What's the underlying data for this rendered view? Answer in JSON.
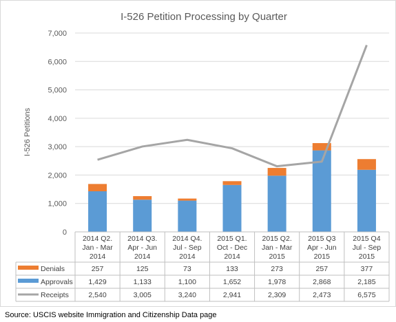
{
  "chart_data": {
    "type": "bar",
    "stacked": true,
    "title": "I-526 Petition Processing by Quarter",
    "ylabel": "I-526 Petitions",
    "xlabel": "",
    "ylim": [
      0,
      7000
    ],
    "yticks": [
      "0",
      "1,000",
      "2,000",
      "3,000",
      "4,000",
      "5,000",
      "6,000",
      "7,000"
    ],
    "grid": true,
    "legend": "data-table",
    "categories": [
      [
        "2014 Q2.",
        "Jan - Mar",
        "2014"
      ],
      [
        "2014 Q3.",
        "Apr - Jun",
        "2014"
      ],
      [
        "2014 Q4.",
        "Jul - Sep",
        "2014"
      ],
      [
        "2015 Q1.",
        "Oct - Dec",
        "2014"
      ],
      [
        "2015 Q2.",
        "Jan - Mar",
        "2015"
      ],
      [
        "2015 Q3",
        "Apr - Jun",
        "2015"
      ],
      [
        "2015 Q4",
        "Jul - Sep",
        "2015"
      ]
    ],
    "series": [
      {
        "name": "Denials",
        "kind": "bar",
        "color": "#ed7d31",
        "values": [
          257,
          125,
          73,
          133,
          273,
          257,
          377
        ],
        "labels": [
          "257",
          "125",
          "73",
          "133",
          "273",
          "257",
          "377"
        ]
      },
      {
        "name": "Approvals",
        "kind": "bar",
        "color": "#5b9bd5",
        "values": [
          1429,
          1133,
          1100,
          1652,
          1978,
          2868,
          2185
        ],
        "labels": [
          "1,429",
          "1,133",
          "1,100",
          "1,652",
          "1,978",
          "2,868",
          "2,185"
        ]
      },
      {
        "name": "Receipts",
        "kind": "line",
        "color": "#a5a5a5",
        "values": [
          2540,
          3005,
          3240,
          2941,
          2309,
          2473,
          6575
        ],
        "labels": [
          "2,540",
          "3,005",
          "3,240",
          "2,941",
          "2,309",
          "2,473",
          "6,575"
        ]
      }
    ]
  },
  "source": "Source: USCIS website Immigration and Citizenship Data page"
}
